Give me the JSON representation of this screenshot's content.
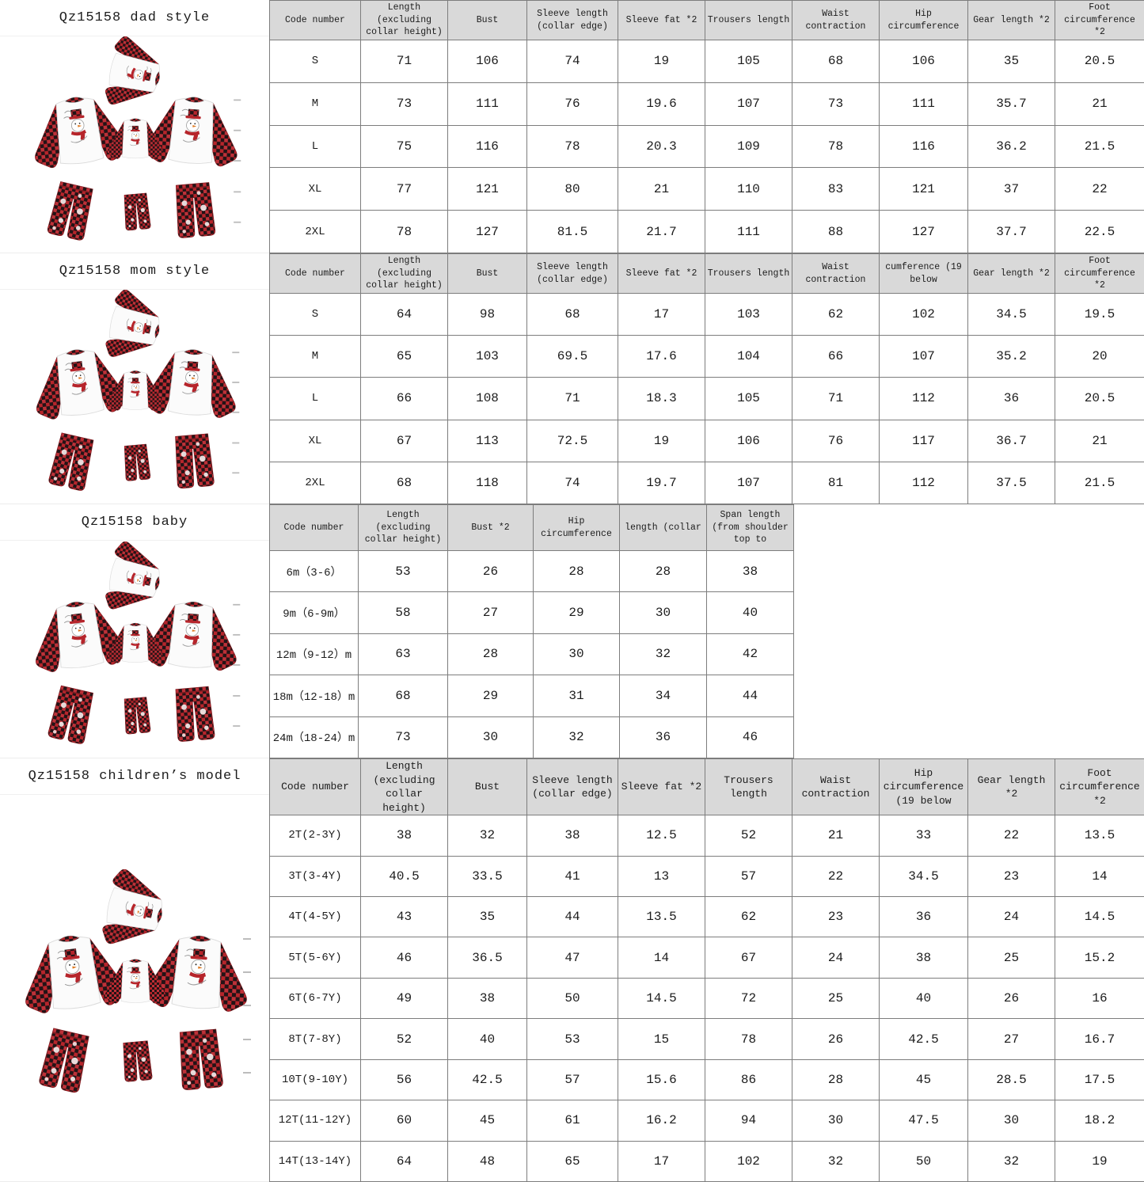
{
  "colors": {
    "header_bg": "#d9d9d9",
    "table_border": "#7d7d7d",
    "plaid_red": "#b6252b",
    "plaid_black": "#231316"
  },
  "sections": [
    {
      "id": "dad",
      "title": "Qz15158 dad style",
      "table": {
        "headers": [
          "Code number",
          "Length (excluding collar height)",
          "Bust",
          "Sleeve length (collar edge)",
          "Sleeve fat *2",
          "Trousers length",
          "Waist contraction",
          "Hip circumference",
          "Gear length *2",
          "Foot circumference *2"
        ],
        "rows": [
          [
            "S",
            "71",
            "106",
            "74",
            "19",
            "105",
            "68",
            "106",
            "35",
            "20.5"
          ],
          [
            "M",
            "73",
            "111",
            "76",
            "19.6",
            "107",
            "73",
            "111",
            "35.7",
            "21"
          ],
          [
            "L",
            "75",
            "116",
            "78",
            "20.3",
            "109",
            "78",
            "116",
            "36.2",
            "21.5"
          ],
          [
            "XL",
            "77",
            "121",
            "80",
            "21",
            "110",
            "83",
            "121",
            "37",
            "22"
          ],
          [
            "2XL",
            "78",
            "127",
            "81.5",
            "21.7",
            "111",
            "88",
            "127",
            "37.7",
            "22.5"
          ]
        ]
      }
    },
    {
      "id": "mom",
      "title": "Qz15158 mom style",
      "table": {
        "headers": [
          "Code number",
          "Length (excluding collar height)",
          "Bust",
          "Sleeve length (collar edge)",
          "Sleeve fat *2",
          "Trousers length",
          "Waist contraction",
          "cumference (19 below",
          "Gear length *2",
          "Foot circumference *2"
        ],
        "rows": [
          [
            "S",
            "64",
            "98",
            "68",
            "17",
            "103",
            "62",
            "102",
            "34.5",
            "19.5"
          ],
          [
            "M",
            "65",
            "103",
            "69.5",
            "17.6",
            "104",
            "66",
            "107",
            "35.2",
            "20"
          ],
          [
            "L",
            "66",
            "108",
            "71",
            "18.3",
            "105",
            "71",
            "112",
            "36",
            "20.5"
          ],
          [
            "XL",
            "67",
            "113",
            "72.5",
            "19",
            "106",
            "76",
            "117",
            "36.7",
            "21"
          ],
          [
            "2XL",
            "68",
            "118",
            "74",
            "19.7",
            "107",
            "81",
            "112",
            "37.5",
            "21.5"
          ]
        ]
      }
    },
    {
      "id": "baby",
      "title": "Qz15158 baby",
      "table": {
        "headers": [
          "Code number",
          "Length (excluding collar height)",
          "Bust *2",
          "Hip circumference",
          "length (collar",
          "Span length (from shoulder top to"
        ],
        "rows": [
          [
            "6m（3-6）",
            "53",
            "26",
            "28",
            "28",
            "38"
          ],
          [
            "9m（6-9m）",
            "58",
            "27",
            "29",
            "30",
            "40"
          ],
          [
            "12m（9-12）m",
            "63",
            "28",
            "30",
            "32",
            "42"
          ],
          [
            "18m（12-18）m",
            "68",
            "29",
            "31",
            "34",
            "44"
          ],
          [
            "24m（18-24）m",
            "73",
            "30",
            "32",
            "36",
            "46"
          ]
        ]
      }
    },
    {
      "id": "children",
      "title": "Qz15158 children’s model",
      "table": {
        "headers": [
          "Code number",
          "Length (excluding collar height)",
          "Bust",
          "Sleeve length (collar edge)",
          "Sleeve fat *2",
          "Trousers length",
          "Waist contraction",
          "Hip circumference (19 below",
          "Gear length *2",
          "Foot circumference *2"
        ],
        "rows": [
          [
            "2T(2-3Y)",
            "38",
            "32",
            "38",
            "12.5",
            "52",
            "21",
            "33",
            "22",
            "13.5"
          ],
          [
            "3T(3-4Y)",
            "40.5",
            "33.5",
            "41",
            "13",
            "57",
            "22",
            "34.5",
            "23",
            "14"
          ],
          [
            "4T(4-5Y)",
            "43",
            "35",
            "44",
            "13.5",
            "62",
            "23",
            "36",
            "24",
            "14.5"
          ],
          [
            "5T(5-6Y)",
            "46",
            "36.5",
            "47",
            "14",
            "67",
            "24",
            "38",
            "25",
            "15.2"
          ],
          [
            "6T(6-7Y)",
            "49",
            "38",
            "50",
            "14.5",
            "72",
            "25",
            "40",
            "26",
            "16"
          ],
          [
            "8T(7-8Y)",
            "52",
            "40",
            "53",
            "15",
            "78",
            "26",
            "42.5",
            "27",
            "16.7"
          ],
          [
            "10T(9-10Y)",
            "56",
            "42.5",
            "57",
            "15.6",
            "86",
            "28",
            "45",
            "28.5",
            "17.5"
          ],
          [
            "12T(11-12Y)",
            "60",
            "45",
            "61",
            "16.2",
            "94",
            "30",
            "47.5",
            "30",
            "18.2"
          ],
          [
            "14T(13-14Y)",
            "64",
            "48",
            "65",
            "17",
            "102",
            "32",
            "50",
            "32",
            "19"
          ]
        ]
      }
    }
  ]
}
